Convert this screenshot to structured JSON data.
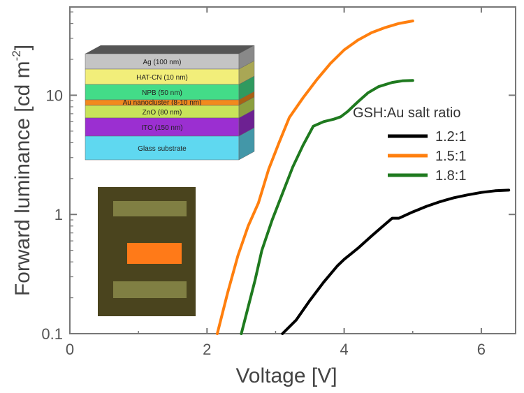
{
  "chart_data": {
    "type": "line",
    "xlabel": "Voltage [V]",
    "ylabel_main": "Forward luminance [cd m",
    "ylabel_sup": "-2",
    "ylabel_close": "]",
    "x_axis": {
      "min": 0,
      "max": 6.5,
      "scale": "linear",
      "ticks": [
        0,
        2,
        4,
        6
      ],
      "tick_labels": [
        "0",
        "2",
        "4",
        "6"
      ]
    },
    "y_axis": {
      "min": 0.1,
      "max": 55,
      "scale": "log",
      "ticks": [
        0.1,
        1,
        10
      ],
      "tick_labels": [
        "0.1",
        "1",
        "10"
      ]
    },
    "grid": false,
    "legend": {
      "title": "GSH:Au salt ratio",
      "placement": "right",
      "entries": [
        "1.2:1",
        "1.5:1",
        "1.8:1"
      ]
    },
    "series": [
      {
        "name": "1.2:1",
        "color": "#000000",
        "x": [
          3.1,
          3.3,
          3.5,
          3.7,
          3.9,
          4.0,
          4.2,
          4.4,
          4.6,
          4.7,
          4.8,
          5.0,
          5.2,
          5.4,
          5.6,
          5.8,
          6.0,
          6.2,
          6.4
        ],
        "y": [
          0.1,
          0.13,
          0.19,
          0.27,
          0.37,
          0.42,
          0.52,
          0.66,
          0.83,
          0.93,
          0.93,
          1.05,
          1.17,
          1.28,
          1.38,
          1.46,
          1.53,
          1.58,
          1.6
        ]
      },
      {
        "name": "1.5:1",
        "color": "#ff7f0e",
        "x": [
          2.15,
          2.3,
          2.45,
          2.6,
          2.75,
          2.9,
          3.05,
          3.2,
          3.4,
          3.6,
          3.8,
          4.0,
          4.2,
          4.4,
          4.6,
          4.8,
          5.0
        ],
        "y": [
          0.1,
          0.22,
          0.45,
          0.8,
          1.25,
          2.4,
          4.0,
          6.5,
          9.5,
          13.5,
          18.5,
          24.0,
          29.0,
          33.5,
          37.0,
          40.0,
          42.0
        ]
      },
      {
        "name": "1.8:1",
        "color": "#1f7a1f",
        "x": [
          2.5,
          2.7,
          2.8,
          2.95,
          3.1,
          3.25,
          3.4,
          3.55,
          3.7,
          3.85,
          3.95,
          4.05,
          4.2,
          4.35,
          4.5,
          4.7,
          4.85,
          5.0
        ],
        "y": [
          0.1,
          0.28,
          0.5,
          0.9,
          1.5,
          2.5,
          3.8,
          5.5,
          6.0,
          6.3,
          6.6,
          7.3,
          8.8,
          10.5,
          11.8,
          12.8,
          13.2,
          13.3
        ]
      }
    ]
  },
  "device_stack": {
    "layers": [
      {
        "label": "Ag (100 nm)",
        "color": "#c4c4c4"
      },
      {
        "label": "HAT-CN (10 nm)",
        "color": "#f2ee7a"
      },
      {
        "label": "NPB (50 nm)",
        "color": "#43dc88"
      },
      {
        "label": "Au nanocluster (8-10 nm)",
        "color": "#f28a1d"
      },
      {
        "label": "ZnO (80 nm)",
        "color": "#c8e45a"
      },
      {
        "label": "ITO (150 nm)",
        "color": "#9b2fd1"
      },
      {
        "label": "Glass substrate",
        "color": "#5fd8f0"
      }
    ]
  },
  "device_photo": {
    "background": "#3a3a1e",
    "lit_pixel_color": "#ff7a18"
  }
}
